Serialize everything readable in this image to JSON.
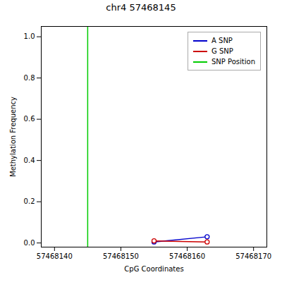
{
  "chart_data": {
    "type": "line",
    "title": "chr4 57468145",
    "xlabel": "CpG Coordinates",
    "ylabel": "Methylation Frequency",
    "x": [
      57468155,
      57468163
    ],
    "series": [
      {
        "name": "A SNP",
        "color": "#0000cc",
        "marker": "circle",
        "values": [
          0.005,
          0.03
        ]
      },
      {
        "name": "G SNP",
        "color": "#cc0000",
        "marker": "circle",
        "values": [
          0.01,
          0.005
        ]
      },
      {
        "name": "SNP Position",
        "color": "#00cc00",
        "type": "vline",
        "x": [
          57468145
        ]
      }
    ],
    "xlim": [
      57468138,
      57468172
    ],
    "xticks": [
      57468140,
      57468150,
      57468160,
      57468170
    ],
    "ylim": [
      -0.02,
      1.05
    ],
    "yticks": [
      {
        "value": 0,
        "label": "0.0"
      },
      0.2,
      0.4,
      0.6,
      0.8,
      {
        "value": 1,
        "label": "1.0"
      }
    ],
    "grid": false,
    "legend": "upper right"
  }
}
